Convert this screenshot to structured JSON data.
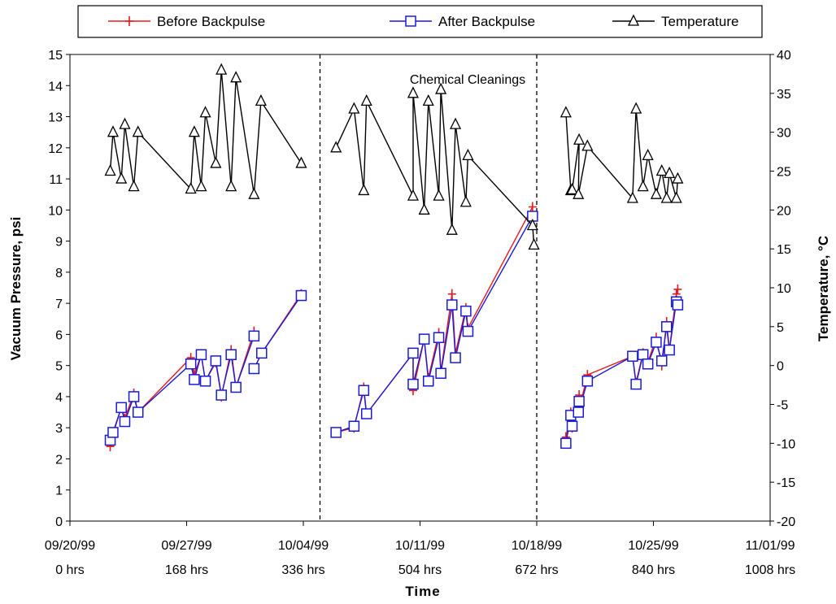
{
  "colors": {
    "before": "#e8191d",
    "after": "#1a1ad6",
    "temperature": "#000000"
  },
  "chart_data": {
    "type": "line",
    "annotation": "Chemical Cleanings",
    "legend": {
      "placement": "top-center",
      "entries": [
        {
          "label": "Before Backpulse",
          "marker": "plus"
        },
        {
          "label": "After Backpulse",
          "marker": "square"
        },
        {
          "label": "Temperature",
          "marker": "triangle"
        }
      ]
    },
    "x_axis": {
      "title": "Time",
      "range": [
        0,
        1008
      ],
      "ticks": [
        {
          "value": 0,
          "date": "09/20/99",
          "hours": "0 hrs"
        },
        {
          "value": 168,
          "date": "09/27/99",
          "hours": "168 hrs"
        },
        {
          "value": 336,
          "date": "10/04/99",
          "hours": "336 hrs"
        },
        {
          "value": 504,
          "date": "10/11/99",
          "hours": "504 hrs"
        },
        {
          "value": 672,
          "date": "10/18/99",
          "hours": "672 hrs"
        },
        {
          "value": 840,
          "date": "10/25/99",
          "hours": "840 hrs"
        },
        {
          "value": 1008,
          "date": "11/01/99",
          "hours": "1008 hrs"
        }
      ]
    },
    "y_axis_left": {
      "title": "Vacuum Pressure, psi",
      "range": [
        0,
        15
      ],
      "ticks": [
        "0",
        "1",
        "2",
        "3",
        "4",
        "5",
        "6",
        "7",
        "8",
        "9",
        "10",
        "11",
        "12",
        "13",
        "14",
        "15"
      ]
    },
    "y_axis_right": {
      "title": "Temperature, °C",
      "range": [
        -20,
        40
      ],
      "ticks": [
        "-20",
        "-15",
        "-10",
        "-5",
        "0",
        "5",
        "10",
        "15",
        "20",
        "25",
        "30",
        "35",
        "40"
      ]
    },
    "chemical_cleanings_x": [
      360,
      672
    ],
    "series": [
      {
        "name": "Before Backpulse",
        "axis": "left",
        "segments": [
          {
            "x": [
              58,
              62,
              74,
              79,
              92,
              98,
              174,
              179,
              189,
              195,
              210,
              218,
              232,
              239,
              265
            ],
            "y": [
              2.4,
              2.8,
              3.65,
              3.3,
              4.1,
              3.5,
              5.25,
              4.7,
              5.35,
              4.5,
              5.1,
              4.0,
              5.5,
              4.3,
              6.1
            ]
          },
          {
            "x": [
              265,
              276,
              333
            ],
            "y": [
              4.9,
              5.4,
              7.3
            ]
          },
          {
            "x": [
              383,
              409,
              423,
              427,
              494,
              494,
              510,
              516,
              531,
              534,
              550,
              555,
              570,
              573,
              666
            ],
            "y": [
              2.85,
              3.0,
              4.3,
              3.45,
              5.4,
              4.2,
              5.85,
              4.6,
              6.05,
              4.8,
              7.3,
              5.4,
              6.85,
              6.2,
              10.1
            ]
          },
          {
            "x": [
              714,
              721,
              723,
              733,
              732,
              745,
              810,
              815,
              825,
              832,
              844,
              852,
              859,
              863,
              873,
              875
            ],
            "y": [
              2.7,
              3.5,
              3.0,
              4.05,
              3.5,
              4.7,
              5.3,
              4.45,
              5.4,
              5.1,
              5.9,
              5.0,
              6.4,
              5.5,
              7.3,
              7.45
            ]
          }
        ]
      },
      {
        "name": "After Backpulse",
        "axis": "left",
        "segments": [
          {
            "x": [
              58,
              62,
              74,
              79,
              92,
              98,
              174,
              179,
              189,
              195,
              210,
              218,
              232,
              239,
              265
            ],
            "y": [
              2.6,
              2.85,
              3.65,
              3.2,
              4.0,
              3.5,
              5.05,
              4.55,
              5.35,
              4.5,
              5.15,
              4.05,
              5.35,
              4.3,
              5.95
            ]
          },
          {
            "x": [
              265,
              276,
              333
            ],
            "y": [
              4.9,
              5.4,
              7.25
            ]
          },
          {
            "x": [
              383,
              409,
              423,
              427,
              494,
              494,
              510,
              516,
              531,
              534,
              550,
              555,
              570,
              573,
              666
            ],
            "y": [
              2.85,
              3.05,
              4.2,
              3.45,
              5.4,
              4.4,
              5.85,
              4.5,
              5.9,
              4.75,
              6.95,
              5.25,
              6.75,
              6.1,
              9.8
            ]
          },
          {
            "x": [
              714,
              721,
              723,
              733,
              732,
              745,
              810,
              815,
              825,
              832,
              844,
              852,
              859,
              863,
              873,
              875
            ],
            "y": [
              2.5,
              3.4,
              3.05,
              3.85,
              3.5,
              4.5,
              5.3,
              4.4,
              5.35,
              5.05,
              5.75,
              5.15,
              6.25,
              5.5,
              7.05,
              6.95
            ]
          }
        ]
      },
      {
        "name": "Temperature",
        "axis": "right",
        "segments": [
          {
            "x": [
              58,
              62,
              74,
              79,
              92,
              98,
              174,
              179,
              189,
              195,
              210,
              218,
              232,
              239,
              265,
              275,
              333
            ],
            "y": [
              25,
              30,
              24,
              31,
              23,
              30,
              22.7,
              30,
              23,
              32.5,
              26,
              38,
              23,
              37,
              22,
              34,
              26
            ]
          },
          {
            "x": [
              383,
              409,
              423,
              427,
              494,
              494,
              510,
              516,
              531,
              534,
              550,
              555,
              570,
              573,
              666,
              668
            ],
            "y": [
              28,
              33,
              22.5,
              34,
              21.8,
              35,
              20,
              34,
              21.8,
              35.5,
              17.4,
              31,
              21,
              27,
              18,
              15.5
            ]
          },
          {
            "x": [
              714,
              721,
              723,
              733,
              732,
              745,
              810,
              815,
              825,
              832,
              844,
              852,
              859,
              863,
              873,
              875
            ],
            "y": [
              32.5,
              22.5,
              22.6,
              29,
              22,
              28.2,
              21.5,
              33,
              23,
              27,
              22,
              25,
              21.5,
              24.7,
              21.5,
              24
            ]
          }
        ]
      }
    ]
  }
}
